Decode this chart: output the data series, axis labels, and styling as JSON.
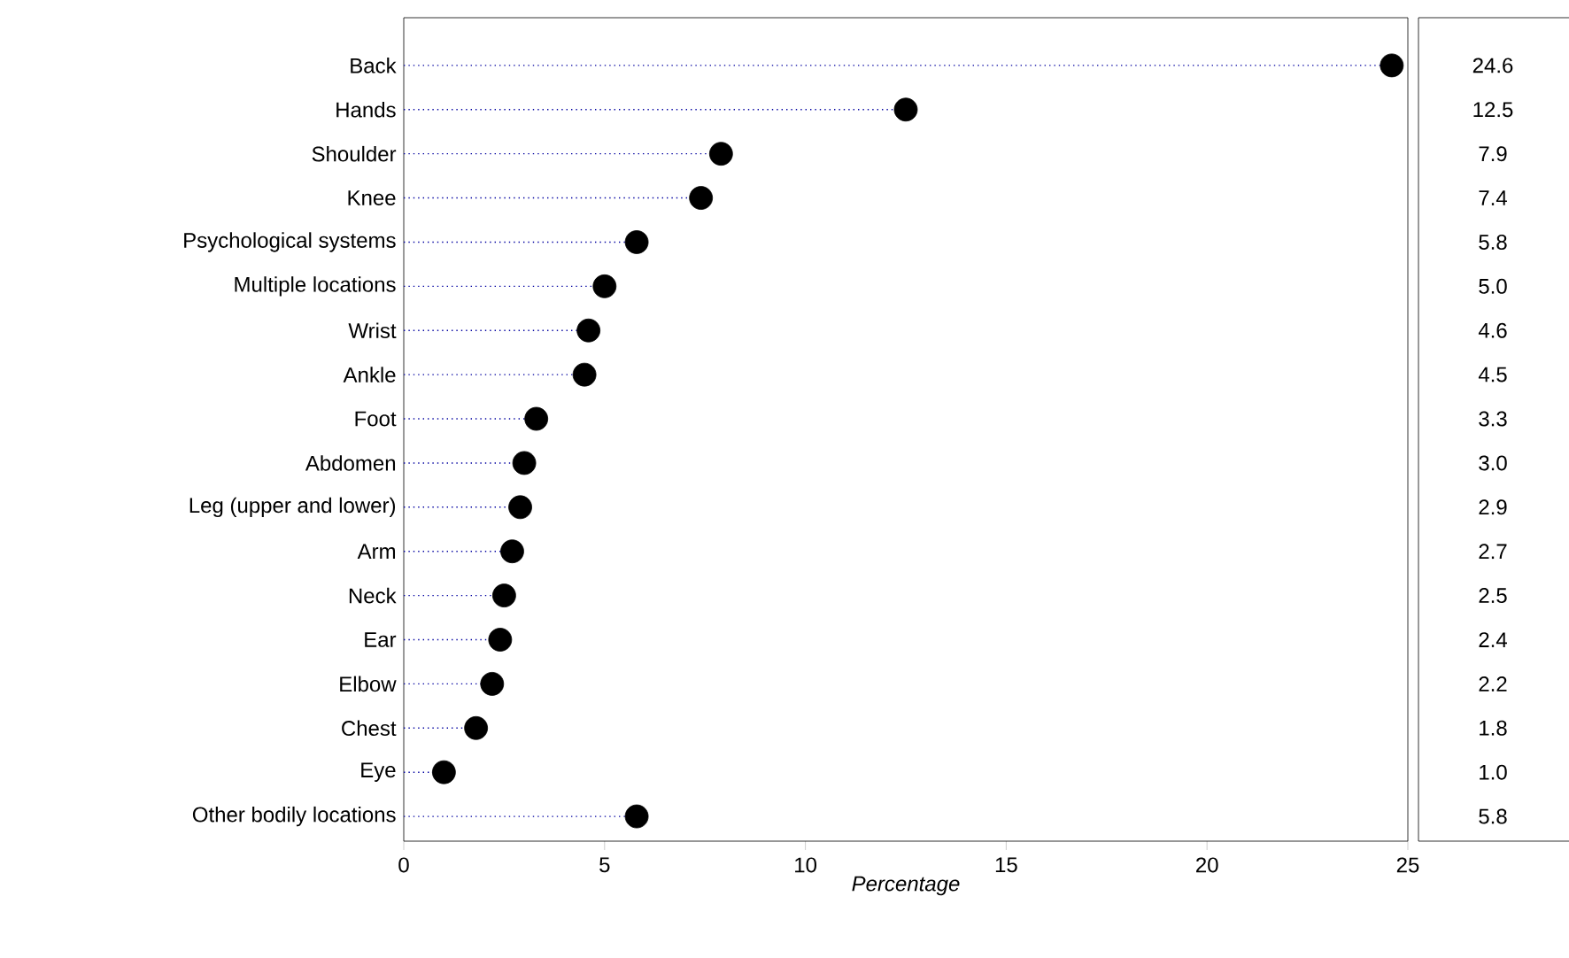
{
  "chart_data": {
    "type": "lollipop",
    "xlabel": "Percentage",
    "categories": [
      "Back",
      "Hands",
      "Shoulder",
      "Knee",
      "Psychological systems",
      "Multiple locations",
      "Wrist",
      "Ankle",
      "Foot",
      "Abdomen",
      "Leg (upper and lower)",
      "Arm",
      "Neck",
      "Ear",
      "Elbow",
      "Chest",
      "Eye",
      "Other bodily locations"
    ],
    "orientation": "horizontal",
    "series": [
      {
        "color": "#000000",
        "values": [
          24.6,
          12.5,
          7.9,
          7.4,
          5.8,
          5.0,
          4.6,
          4.5,
          3.3,
          3.0,
          2.9,
          2.7,
          2.5,
          2.4,
          2.2,
          1.8,
          1.0,
          5.8
        ],
        "value_labels": [
          "24.6",
          "12.5",
          "7.9",
          "7.4",
          "5.8",
          "5.0",
          "4.6",
          "4.5",
          "3.3",
          "3.0",
          "2.9",
          "2.7",
          "2.5",
          "2.4",
          "2.2",
          "1.8",
          "1.0",
          "5.8"
        ]
      }
    ],
    "xlim": [
      0,
      25
    ],
    "xticks": [
      0,
      5,
      10,
      15,
      20,
      25
    ],
    "marker": "circle",
    "line_style": "dotted"
  }
}
